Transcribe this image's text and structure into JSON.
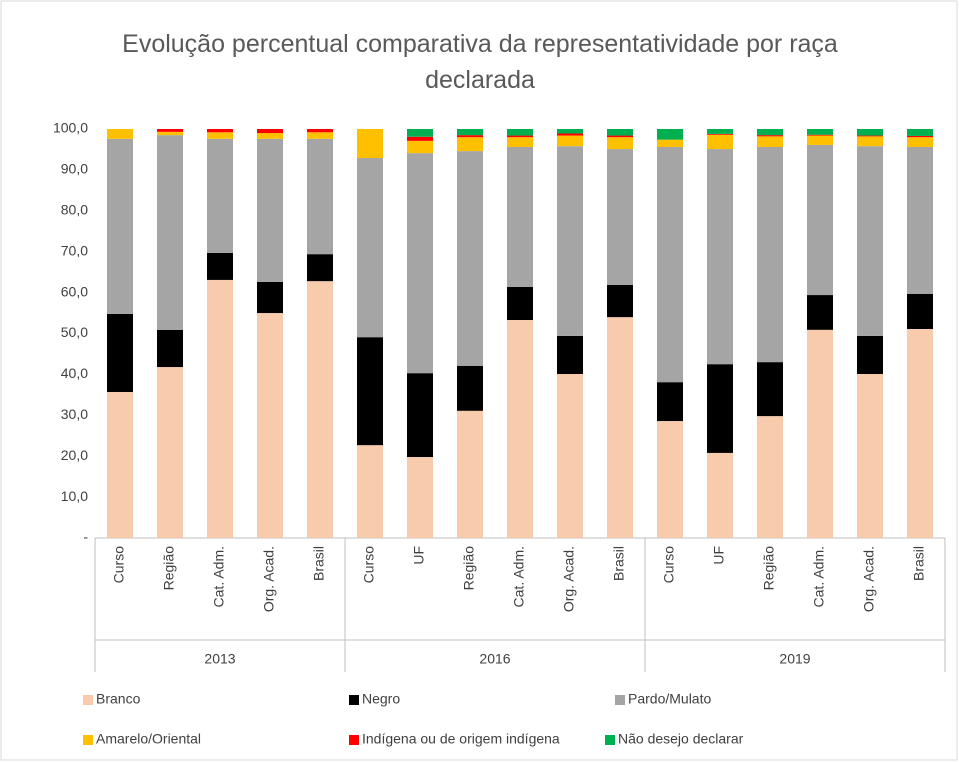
{
  "chart_data": {
    "type": "stacked-bar",
    "title": "Evolução percentual comparativa da representatividade por raça declarada",
    "groups": [
      {
        "label": "2013",
        "categories": [
          "Curso",
          "Região",
          "Cat. Adm.",
          "Org. Acad.",
          "Brasil"
        ]
      },
      {
        "label": "2016",
        "categories": [
          "Curso",
          "UF",
          "Região",
          "Cat. Adm.",
          "Org. Acad.",
          "Brasil"
        ]
      },
      {
        "label": "2019",
        "categories": [
          "Curso",
          "UF",
          "Região",
          "Cat. Adm.",
          "Org. Acad.",
          "Brasil"
        ]
      }
    ],
    "series": [
      {
        "name": "Branco",
        "color": "#f8cbad",
        "values": [
          35.7,
          41.8,
          63.1,
          55.0,
          62.8,
          22.7,
          19.8,
          31.1,
          53.3,
          40.1,
          54.0,
          28.6,
          20.8,
          29.8,
          50.9,
          40.1,
          51.1
        ]
      },
      {
        "name": "Negro",
        "color": "#000000",
        "values": [
          19.1,
          9.1,
          6.6,
          7.6,
          6.6,
          26.4,
          20.5,
          11.0,
          8.1,
          9.3,
          7.9,
          9.5,
          21.7,
          13.2,
          8.5,
          9.3,
          8.6
        ]
      },
      {
        "name": "Pardo/Mulato",
        "color": "#a5a5a5",
        "values": [
          42.8,
          47.6,
          27.9,
          35.0,
          28.2,
          43.8,
          53.8,
          52.5,
          34.2,
          46.4,
          33.2,
          57.5,
          52.6,
          52.6,
          36.7,
          46.4,
          35.9
        ]
      },
      {
        "name": "Amarelo/Oriental",
        "color": "#ffc000",
        "values": [
          2.4,
          0.8,
          1.6,
          1.4,
          1.6,
          7.1,
          3.0,
          3.4,
          2.4,
          2.6,
          2.9,
          1.8,
          3.5,
          2.6,
          2.3,
          2.4,
          2.4
        ]
      },
      {
        "name": "Indígena ou de origem indígena",
        "color": "#ff0000",
        "values": [
          0,
          0.7,
          0.8,
          1.0,
          0.8,
          0,
          1.0,
          0.5,
          0.4,
          0.5,
          0.4,
          0,
          0.2,
          0.3,
          0.2,
          0.2,
          0.3
        ]
      },
      {
        "name": "Não desejo declarar",
        "color": "#00b050",
        "values": [
          0,
          0,
          0,
          0,
          0,
          0,
          1.9,
          1.5,
          1.6,
          1.1,
          1.6,
          2.6,
          1.2,
          1.5,
          1.4,
          1.6,
          1.7
        ]
      }
    ],
    "ylim": [
      0,
      100
    ],
    "yticks": [
      {
        "value": 0,
        "label": "-"
      },
      {
        "value": 10,
        "label": "10,0"
      },
      {
        "value": 20,
        "label": "20,0"
      },
      {
        "value": 30,
        "label": "30,0"
      },
      {
        "value": 40,
        "label": "40,0"
      },
      {
        "value": 50,
        "label": "50,0"
      },
      {
        "value": 60,
        "label": "60,0"
      },
      {
        "value": 70,
        "label": "70,0"
      },
      {
        "value": 80,
        "label": "80,0"
      },
      {
        "value": 90,
        "label": "90,0"
      },
      {
        "value": 100,
        "label": "100,0"
      }
    ],
    "grid": false
  }
}
